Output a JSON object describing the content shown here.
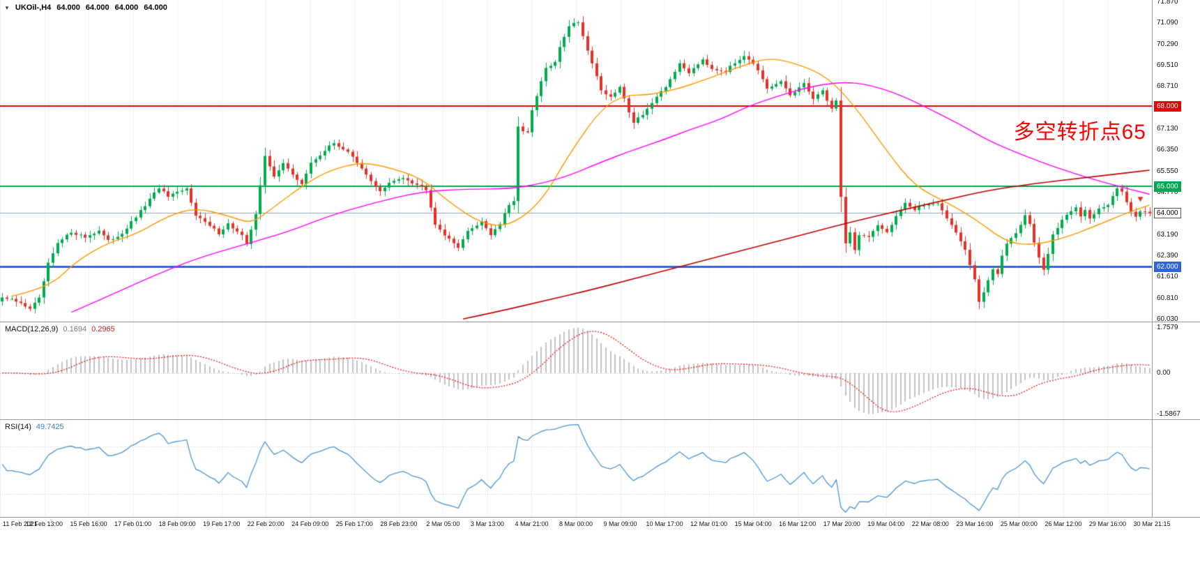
{
  "header": {
    "collapse_icon": "▼",
    "symbol": "UKOil-,H4",
    "open": "64.000",
    "high": "64.000",
    "low": "64.000",
    "close": "64.000"
  },
  "annotation": {
    "text": "多空转折点65",
    "color": "#FF0000"
  },
  "macd": {
    "name_label": "MACD(12,26,9)",
    "value1": "0.1694",
    "value2": "0.2965",
    "axis_top": "1.7579",
    "axis_zero": "0.00",
    "axis_bottom": "-1.5867",
    "params": {
      "fast": 12,
      "slow": 26,
      "signal": 9
    }
  },
  "rsi": {
    "name_label": "RSI(14)",
    "value": "49.7425",
    "period": 14,
    "levels": [
      30,
      70
    ]
  },
  "price_axis": {
    "labels": [
      {
        "text": "71.870",
        "price": 71.87
      },
      {
        "text": "71.090",
        "price": 71.09
      },
      {
        "text": "70.290",
        "price": 70.29
      },
      {
        "text": "69.510",
        "price": 69.51
      },
      {
        "text": "68.710",
        "price": 68.71
      },
      {
        "text": "67.130",
        "price": 67.13
      },
      {
        "text": "66.350",
        "price": 66.35
      },
      {
        "text": "65.550",
        "price": 65.55
      },
      {
        "text": "64.770",
        "price": 64.77
      },
      {
        "text": "63.190",
        "price": 63.19
      },
      {
        "text": "62.390",
        "price": 62.39
      },
      {
        "text": "61.610",
        "price": 61.61
      },
      {
        "text": "60.810",
        "price": 60.81
      },
      {
        "text": "60.030",
        "price": 60.03
      }
    ],
    "badges": [
      {
        "text": "68.000",
        "price": 68.0,
        "bg": "#E60000",
        "fg": "#FFFFFF",
        "border": "#E60000"
      },
      {
        "text": "65.000",
        "price": 65.0,
        "bg": "#00A651",
        "fg": "#FFFFFF",
        "border": "#00A651"
      },
      {
        "text": "64.000",
        "price": 64.0,
        "bg": "#FFFFFF",
        "fg": "#000000",
        "border": "#555555"
      },
      {
        "text": "62.000",
        "price": 62.0,
        "bg": "#2E66D9",
        "fg": "#FFFFFF",
        "border": "#2E66D9"
      }
    ]
  },
  "time_axis": {
    "labels": [
      "11 Feb 2021",
      "12 Feb 13:00",
      "15 Feb 16:00",
      "17 Feb 01:00",
      "18 Feb 09:00",
      "19 Feb 17:00",
      "22 Feb 20:00",
      "24 Feb 09:00",
      "25 Feb 17:00",
      "28 Feb 23:00",
      "2 Mar 05:00",
      "3 Mar 13:00",
      "4 Mar 21:00",
      "8 Mar 00:00",
      "9 Mar 09:00",
      "10 Mar 17:00",
      "12 Mar 01:00",
      "15 Mar 04:00",
      "16 Mar 12:00",
      "17 Mar 20:00",
      "19 Mar 04:00",
      "22 Mar 08:00",
      "23 Mar 16:00",
      "25 Mar 00:00",
      "26 Mar 12:00",
      "29 Mar 16:00",
      "30 Mar 21:15"
    ]
  },
  "chart_data": {
    "type": "candlestick",
    "symbol": "UKOil-",
    "timeframe": "H4",
    "n_candles": 250,
    "price_range": [
      59.95,
      71.95
    ],
    "close_anchors": [
      [
        0,
        60.85
      ],
      [
        3,
        60.7
      ],
      [
        6,
        60.45
      ],
      [
        8,
        60.8
      ],
      [
        10,
        62.1
      ],
      [
        12,
        62.85
      ],
      [
        15,
        63.3
      ],
      [
        18,
        63.1
      ],
      [
        21,
        63.35
      ],
      [
        23,
        62.95
      ],
      [
        26,
        63.25
      ],
      [
        29,
        63.85
      ],
      [
        32,
        64.5
      ],
      [
        34,
        64.95
      ],
      [
        36,
        64.6
      ],
      [
        38,
        64.75
      ],
      [
        40,
        64.9
      ],
      [
        42,
        63.95
      ],
      [
        44,
        63.65
      ],
      [
        47,
        63.25
      ],
      [
        49,
        63.6
      ],
      [
        52,
        63.15
      ],
      [
        53,
        62.8
      ],
      [
        55,
        64.0
      ],
      [
        57,
        66.1
      ],
      [
        59,
        65.35
      ],
      [
        61,
        65.9
      ],
      [
        63,
        65.4
      ],
      [
        65,
        65.1
      ],
      [
        67,
        65.85
      ],
      [
        70,
        66.35
      ],
      [
        72,
        66.6
      ],
      [
        75,
        66.3
      ],
      [
        77,
        65.85
      ],
      [
        80,
        65.2
      ],
      [
        82,
        64.8
      ],
      [
        84,
        65.1
      ],
      [
        87,
        65.35
      ],
      [
        89,
        65.15
      ],
      [
        92,
        64.9
      ],
      [
        94,
        63.6
      ],
      [
        97,
        63.0
      ],
      [
        99,
        62.75
      ],
      [
        101,
        63.3
      ],
      [
        104,
        63.7
      ],
      [
        106,
        63.2
      ],
      [
        108,
        63.6
      ],
      [
        110,
        64.3
      ],
      [
        111,
        64.4
      ],
      [
        112,
        67.2
      ],
      [
        114,
        67.0
      ],
      [
        115,
        67.8
      ],
      [
        117,
        68.9
      ],
      [
        118,
        69.4
      ],
      [
        120,
        69.6
      ],
      [
        121,
        70.2
      ],
      [
        123,
        71.0
      ],
      [
        125,
        71.15
      ],
      [
        126,
        70.6
      ],
      [
        128,
        69.6
      ],
      [
        130,
        68.6
      ],
      [
        132,
        68.3
      ],
      [
        134,
        68.7
      ],
      [
        136,
        67.8
      ],
      [
        137,
        67.4
      ],
      [
        139,
        67.7
      ],
      [
        142,
        68.3
      ],
      [
        144,
        68.7
      ],
      [
        146,
        69.3
      ],
      [
        147,
        69.55
      ],
      [
        149,
        69.25
      ],
      [
        152,
        69.75
      ],
      [
        154,
        69.4
      ],
      [
        157,
        69.3
      ],
      [
        159,
        69.6
      ],
      [
        161,
        69.9
      ],
      [
        163,
        69.6
      ],
      [
        164,
        69.3
      ],
      [
        166,
        68.6
      ],
      [
        169,
        68.9
      ],
      [
        171,
        68.4
      ],
      [
        174,
        68.8
      ],
      [
        176,
        68.3
      ],
      [
        178,
        68.55
      ],
      [
        180,
        67.9
      ],
      [
        181,
        68.2
      ],
      [
        182,
        64.6
      ],
      [
        183,
        62.9
      ],
      [
        184,
        63.3
      ],
      [
        185,
        62.6
      ],
      [
        186,
        63.2
      ],
      [
        188,
        63.1
      ],
      [
        190,
        63.5
      ],
      [
        192,
        63.3
      ],
      [
        194,
        63.9
      ],
      [
        196,
        64.4
      ],
      [
        198,
        64.1
      ],
      [
        200,
        64.3
      ],
      [
        203,
        64.4
      ],
      [
        205,
        63.8
      ],
      [
        207,
        63.3
      ],
      [
        209,
        62.6
      ],
      [
        211,
        61.5
      ],
      [
        212,
        60.7
      ],
      [
        213,
        61.0
      ],
      [
        214,
        61.5
      ],
      [
        215,
        61.9
      ],
      [
        216,
        61.7
      ],
      [
        217,
        62.4
      ],
      [
        218,
        62.9
      ],
      [
        220,
        63.3
      ],
      [
        222,
        63.9
      ],
      [
        223,
        63.6
      ],
      [
        224,
        62.9
      ],
      [
        225,
        62.3
      ],
      [
        226,
        61.9
      ],
      [
        227,
        62.5
      ],
      [
        228,
        63.2
      ],
      [
        230,
        63.7
      ],
      [
        232,
        64.1
      ],
      [
        233,
        64.2
      ],
      [
        234,
        63.9
      ],
      [
        235,
        64.1
      ],
      [
        236,
        63.8
      ],
      [
        238,
        64.2
      ],
      [
        240,
        64.3
      ],
      [
        241,
        64.6
      ],
      [
        242,
        64.9
      ],
      [
        243,
        64.8
      ],
      [
        244,
        64.4
      ],
      [
        245,
        64.1
      ],
      [
        246,
        63.9
      ],
      [
        247,
        64.1
      ],
      [
        249,
        64.0
      ]
    ],
    "horizontal_lines": [
      {
        "name": "resistance-68",
        "price": 68.0,
        "color": "#E60000",
        "width": 2
      },
      {
        "name": "pivot-65",
        "price": 65.0,
        "color": "#00A651",
        "width": 2
      },
      {
        "name": "support-62",
        "price": 62.0,
        "color": "#2E66D9",
        "width": 3
      },
      {
        "name": "current-price-64",
        "price": 64.0,
        "color": "#90A0B4",
        "width": 1
      }
    ],
    "moving_averages": [
      {
        "name": "ma-fast-orange",
        "color": "#FF9900",
        "width": 1.4,
        "points": [
          [
            2,
            60.9
          ],
          [
            10,
            61.2
          ],
          [
            16,
            62.2
          ],
          [
            23,
            62.9
          ],
          [
            29,
            63.2
          ],
          [
            36,
            63.9
          ],
          [
            42,
            64.2
          ],
          [
            49,
            63.9
          ],
          [
            54,
            63.6
          ],
          [
            58,
            64.1
          ],
          [
            65,
            65.0
          ],
          [
            71,
            65.6
          ],
          [
            78,
            65.9
          ],
          [
            84,
            65.7
          ],
          [
            91,
            65.3
          ],
          [
            97,
            64.4
          ],
          [
            104,
            63.6
          ],
          [
            110,
            63.5
          ],
          [
            117,
            64.4
          ],
          [
            123,
            66.2
          ],
          [
            130,
            67.9
          ],
          [
            135,
            68.4
          ],
          [
            140,
            68.4
          ],
          [
            146,
            68.6
          ],
          [
            153,
            69.0
          ],
          [
            159,
            69.4
          ],
          [
            166,
            69.8
          ],
          [
            172,
            69.6
          ],
          [
            179,
            69.1
          ],
          [
            185,
            68.0
          ],
          [
            192,
            66.3
          ],
          [
            198,
            65.0
          ],
          [
            205,
            64.4
          ],
          [
            211,
            63.8
          ],
          [
            218,
            62.9
          ],
          [
            224,
            62.8
          ],
          [
            231,
            63.1
          ],
          [
            237,
            63.5
          ],
          [
            244,
            64.0
          ],
          [
            249,
            64.3
          ]
        ]
      },
      {
        "name": "ma-mid-magenta",
        "color": "#FF00FF",
        "width": 1.4,
        "points": [
          [
            15,
            60.3
          ],
          [
            23,
            60.9
          ],
          [
            32,
            61.6
          ],
          [
            42,
            62.3
          ],
          [
            52,
            62.8
          ],
          [
            62,
            63.3
          ],
          [
            71,
            63.9
          ],
          [
            81,
            64.4
          ],
          [
            91,
            64.8
          ],
          [
            101,
            64.9
          ],
          [
            110,
            64.9
          ],
          [
            117,
            65.1
          ],
          [
            123,
            65.4
          ],
          [
            130,
            65.9
          ],
          [
            136,
            66.3
          ],
          [
            143,
            66.7
          ],
          [
            149,
            67.1
          ],
          [
            156,
            67.5
          ],
          [
            162,
            68.0
          ],
          [
            169,
            68.4
          ],
          [
            175,
            68.7
          ],
          [
            182,
            68.9
          ],
          [
            188,
            68.8
          ],
          [
            195,
            68.4
          ],
          [
            201,
            67.9
          ],
          [
            208,
            67.3
          ],
          [
            214,
            66.7
          ],
          [
            221,
            66.2
          ],
          [
            227,
            65.8
          ],
          [
            234,
            65.4
          ],
          [
            240,
            65.1
          ],
          [
            249,
            64.7
          ]
        ]
      },
      {
        "name": "ma-slow-red",
        "color": "#C00000",
        "width": 1.6,
        "points": [
          [
            100,
            60.05
          ],
          [
            107,
            60.3
          ],
          [
            117,
            60.7
          ],
          [
            127,
            61.1
          ],
          [
            136,
            61.5
          ],
          [
            146,
            61.95
          ],
          [
            156,
            62.4
          ],
          [
            166,
            62.85
          ],
          [
            175,
            63.25
          ],
          [
            185,
            63.7
          ],
          [
            195,
            64.1
          ],
          [
            205,
            64.5
          ],
          [
            214,
            64.85
          ],
          [
            224,
            65.1
          ],
          [
            234,
            65.3
          ],
          [
            244,
            65.5
          ],
          [
            249,
            65.6
          ]
        ]
      }
    ],
    "markers": [
      {
        "name": "sell-arrow-marker",
        "index": 247,
        "price": 64.55,
        "color": "#E03020"
      }
    ],
    "colors": {
      "bull": "#00AC4E",
      "bear": "#E53228",
      "grid": "#F1F1F1",
      "macd_hist": "#C2C2C2",
      "macd_signal": "#FF0000",
      "rsi_line": "#4A96D2",
      "rsi_levels": "#CCCCCC",
      "axis_line": "#9A9A9A"
    }
  }
}
